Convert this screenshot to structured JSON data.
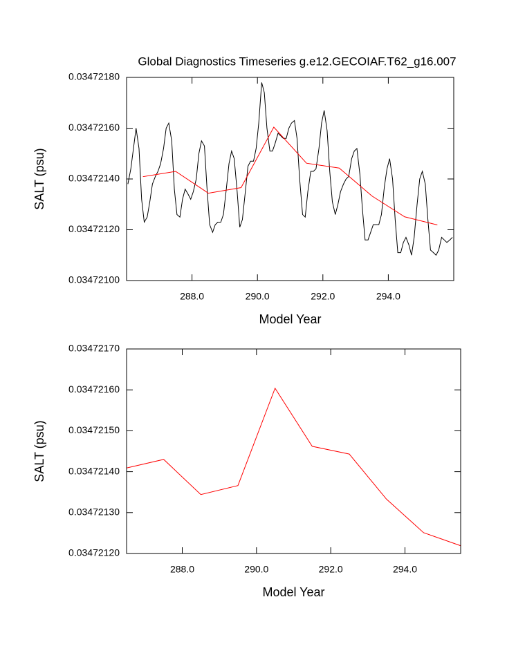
{
  "chart_data": [
    {
      "type": "line",
      "title": "Global Diagnostics Timeseries g.e12.GECOIAF.T62_g16.007",
      "x_label": "Model Year",
      "y_label": "SALT (psu)",
      "xlim": [
        286,
        296
      ],
      "xticks": [
        {
          "value": 288,
          "label": "288.0"
        },
        {
          "value": 290,
          "label": "290.0"
        },
        {
          "value": 292,
          "label": "292.0"
        },
        {
          "value": 294,
          "label": "294.0"
        }
      ],
      "ylim": [
        0.034721,
        0.0347218
      ],
      "yticks": [
        {
          "value": 0.034721,
          "label": "0.03472100"
        },
        {
          "value": 0.0347212,
          "label": "0.03472120"
        },
        {
          "value": 0.0347214,
          "label": "0.03472140"
        },
        {
          "value": 0.0347216,
          "label": "0.03472160"
        },
        {
          "value": 0.0347218,
          "label": "0.03472180"
        }
      ],
      "series": [
        {
          "color": "#000000",
          "x": [
            286.04,
            286.13,
            286.21,
            286.29,
            286.38,
            286.46,
            286.54,
            286.63,
            286.71,
            286.79,
            286.88,
            286.96,
            287.04,
            287.13,
            287.21,
            287.29,
            287.38,
            287.46,
            287.54,
            287.63,
            287.71,
            287.79,
            287.88,
            287.96,
            288.04,
            288.13,
            288.21,
            288.29,
            288.38,
            288.46,
            288.54,
            288.63,
            288.71,
            288.79,
            288.88,
            288.96,
            289.04,
            289.13,
            289.21,
            289.29,
            289.38,
            289.46,
            289.54,
            289.63,
            289.71,
            289.79,
            289.88,
            289.96,
            290.04,
            290.13,
            290.21,
            290.29,
            290.38,
            290.46,
            290.54,
            290.63,
            290.71,
            290.79,
            290.88,
            290.96,
            291.04,
            291.13,
            291.21,
            291.29,
            291.38,
            291.46,
            291.54,
            291.63,
            291.71,
            291.79,
            291.88,
            291.96,
            292.04,
            292.13,
            292.21,
            292.29,
            292.38,
            292.46,
            292.54,
            292.63,
            292.71,
            292.79,
            292.88,
            292.96,
            293.04,
            293.13,
            293.21,
            293.29,
            293.38,
            293.46,
            293.54,
            293.63,
            293.71,
            293.79,
            293.88,
            293.96,
            294.04,
            294.13,
            294.21,
            294.29,
            294.38,
            294.46,
            294.54,
            294.63,
            294.71,
            294.79,
            294.88,
            294.96,
            295.04,
            295.13,
            295.21,
            295.29,
            295.38,
            295.46,
            295.54,
            295.63,
            295.71,
            295.79,
            295.88,
            295.96
          ],
          "values": [
            0.03472138,
            0.03472144,
            0.03472152,
            0.0347216,
            0.03472152,
            0.03472132,
            0.03472123,
            0.03472125,
            0.03472131,
            0.03472138,
            0.03472141,
            0.03472143,
            0.03472146,
            0.03472152,
            0.0347216,
            0.03472162,
            0.03472155,
            0.03472136,
            0.03472126,
            0.03472125,
            0.03472132,
            0.03472136,
            0.03472134,
            0.03472132,
            0.03472135,
            0.0347214,
            0.0347215,
            0.03472155,
            0.03472153,
            0.03472136,
            0.03472122,
            0.03472119,
            0.03472122,
            0.03472123,
            0.03472123,
            0.03472126,
            0.03472135,
            0.03472146,
            0.03472151,
            0.03472148,
            0.03472135,
            0.03472121,
            0.03472124,
            0.03472135,
            0.03472145,
            0.03472147,
            0.03472147,
            0.03472152,
            0.03472162,
            0.03472178,
            0.03472174,
            0.0347216,
            0.03472151,
            0.03472151,
            0.03472154,
            0.03472158,
            0.03472157,
            0.03472156,
            0.03472156,
            0.0347216,
            0.03472162,
            0.03472163,
            0.03472156,
            0.0347214,
            0.03472126,
            0.03472125,
            0.03472135,
            0.03472143,
            0.03472143,
            0.03472144,
            0.03472152,
            0.03472162,
            0.03472167,
            0.03472159,
            0.03472143,
            0.03472131,
            0.03472126,
            0.0347213,
            0.03472135,
            0.03472138,
            0.0347214,
            0.03472141,
            0.03472148,
            0.03472151,
            0.03472152,
            0.03472142,
            0.03472128,
            0.03472116,
            0.03472116,
            0.03472119,
            0.03472122,
            0.03472122,
            0.03472122,
            0.03472126,
            0.03472137,
            0.03472144,
            0.03472148,
            0.0347214,
            0.03472124,
            0.03472111,
            0.03472111,
            0.03472115,
            0.03472117,
            0.03472114,
            0.0347211,
            0.03472117,
            0.0347213,
            0.0347214,
            0.03472143,
            0.03472138,
            0.03472124,
            0.03472112,
            0.03472111,
            0.0347211,
            0.03472112,
            0.03472117,
            0.03472116,
            0.03472115,
            0.03472116,
            0.03472117
          ]
        },
        {
          "color": "#ff0000",
          "x": [
            286.5,
            287.5,
            288.5,
            289.5,
            290.5,
            291.5,
            292.5,
            293.5,
            294.5,
            295.5
          ],
          "values": [
            0.034721409,
            0.03472143,
            0.034721344,
            0.034721366,
            0.034721604,
            0.034721462,
            0.034721443,
            0.034721333,
            0.034721251,
            0.034721219
          ]
        }
      ]
    },
    {
      "type": "line",
      "x_label": "Model Year",
      "y_label": "SALT (psu)",
      "xlim": [
        286.5,
        295.5
      ],
      "xticks": [
        {
          "value": 288,
          "label": "288.0"
        },
        {
          "value": 290,
          "label": "290.0"
        },
        {
          "value": 292,
          "label": "292.0"
        },
        {
          "value": 294,
          "label": "294.0"
        }
      ],
      "ylim": [
        0.0347212,
        0.0347217
      ],
      "yticks": [
        {
          "value": 0.0347212,
          "label": "0.03472120"
        },
        {
          "value": 0.0347213,
          "label": "0.03472130"
        },
        {
          "value": 0.0347214,
          "label": "0.03472140"
        },
        {
          "value": 0.0347215,
          "label": "0.03472150"
        },
        {
          "value": 0.0347216,
          "label": "0.03472160"
        },
        {
          "value": 0.0347217,
          "label": "0.03472170"
        }
      ],
      "series": [
        {
          "color": "#ff0000",
          "x": [
            286.5,
            287.5,
            288.5,
            289.5,
            290.5,
            291.5,
            292.5,
            293.5,
            294.5,
            295.5
          ],
          "values": [
            0.034721409,
            0.03472143,
            0.034721344,
            0.034721366,
            0.034721604,
            0.034721462,
            0.034721443,
            0.034721333,
            0.034721251,
            0.034721219
          ]
        }
      ]
    }
  ]
}
